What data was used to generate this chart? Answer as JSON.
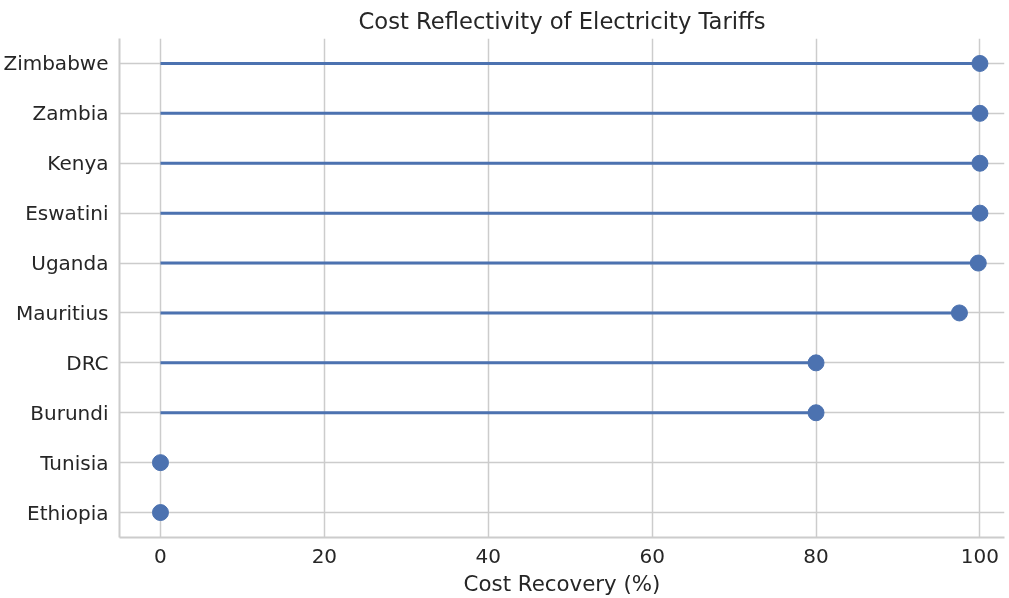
{
  "chart_data": {
    "type": "lollipop",
    "orientation": "horizontal",
    "title": "Cost Reflectivity of Electricity Tariffs",
    "xlabel": "Cost Recovery (%)",
    "categories": [
      "Zimbabwe",
      "Zambia",
      "Kenya",
      "Eswatini",
      "Uganda",
      "Mauritius",
      "DRC",
      "Burundi",
      "Tunisia",
      "Ethiopia"
    ],
    "values": [
      100,
      100,
      100,
      100,
      99.8,
      97.5,
      80,
      80,
      0,
      0
    ],
    "color": "#4c72b0",
    "xlim": [
      -5,
      103
    ],
    "xticks": [
      0,
      20,
      40,
      60,
      80,
      100
    ],
    "grid": true,
    "marker": "circle"
  }
}
